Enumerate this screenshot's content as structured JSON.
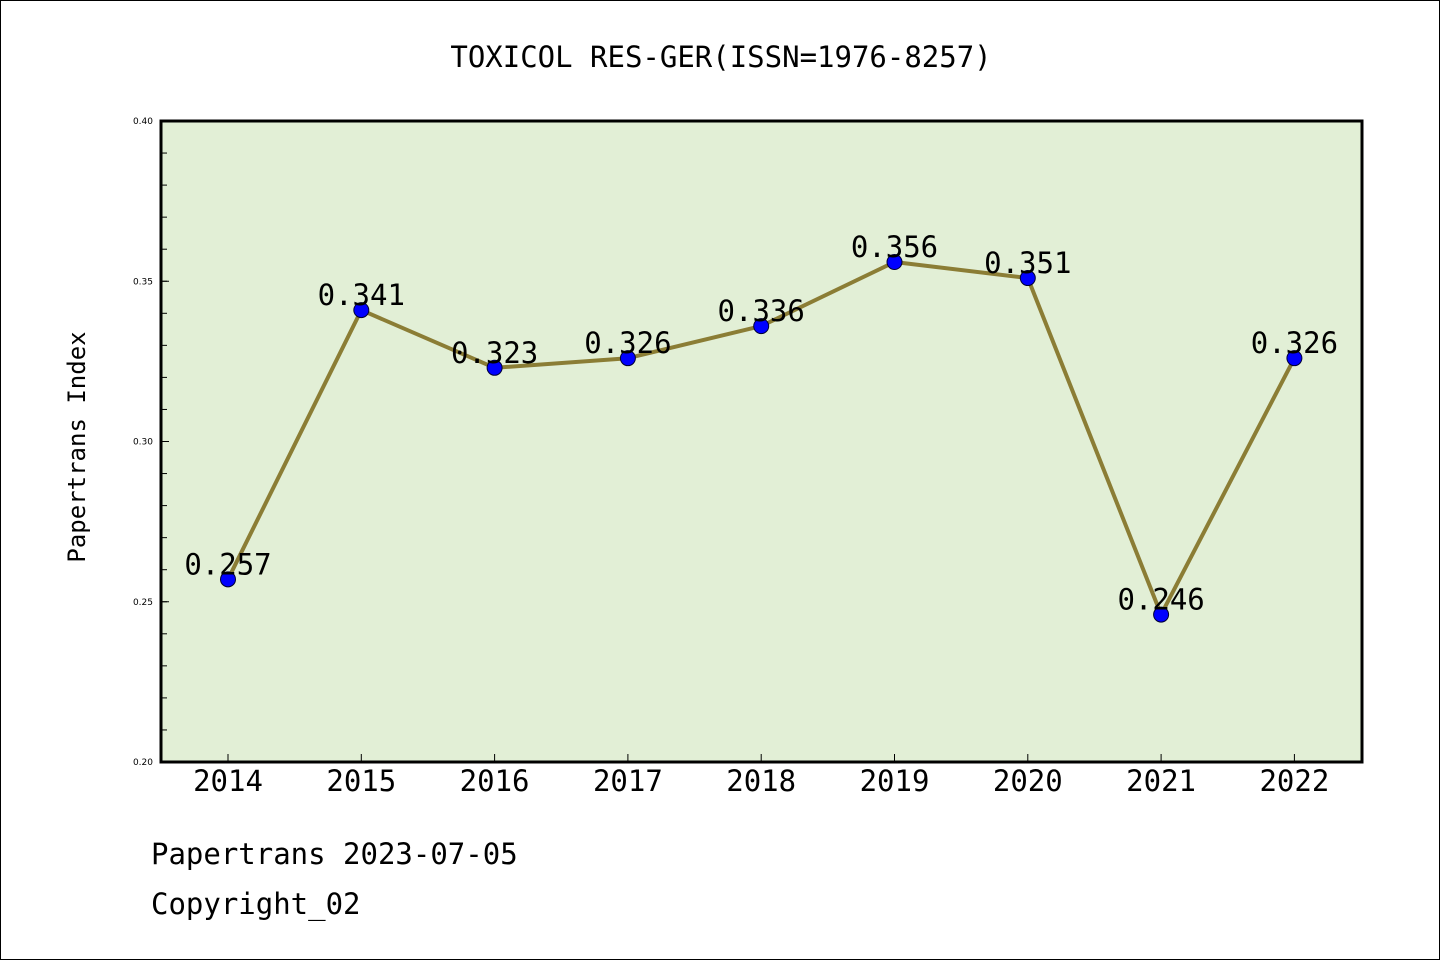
{
  "colors": {
    "plot_background": "#e2efd6",
    "line": "#8b7d35",
    "marker": "#0000ff",
    "text": "#000000"
  },
  "chart_data": {
    "type": "line",
    "title": "TOXICOL RES-GER(ISSN=1976-8257)",
    "xlabel": "",
    "ylabel": "Papertrans Index",
    "categories": [
      "2014",
      "2015",
      "2016",
      "2017",
      "2018",
      "2019",
      "2020",
      "2021",
      "2022"
    ],
    "series": [
      {
        "values": [
          0.257,
          0.341,
          0.323,
          0.326,
          0.336,
          0.356,
          0.351,
          0.246,
          0.326
        ],
        "data_labels": [
          "0.257",
          "0.341",
          "0.323",
          "0.326",
          "0.336",
          "0.356",
          "0.351",
          "0.246",
          "0.326"
        ]
      }
    ],
    "ylim": [
      0.2,
      0.4
    ],
    "yticks": [
      "0.20",
      "0.25",
      "0.30",
      "0.35",
      "0.40"
    ],
    "grid": false,
    "legend": "none"
  },
  "footer": {
    "date_line": "Papertrans 2023-07-05",
    "copyright_line": "Copyright_02"
  }
}
